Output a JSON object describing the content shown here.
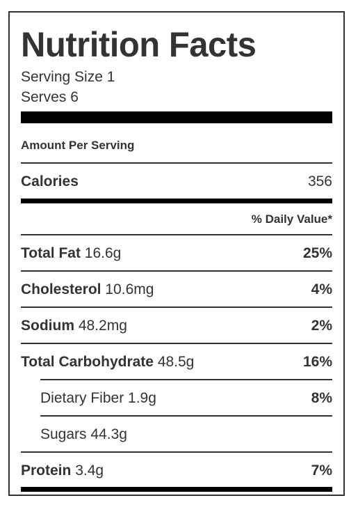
{
  "label": {
    "title": "Nutrition Facts",
    "serving_size": "Serving Size 1",
    "serves": "Serves 6",
    "amount_per_serving": "Amount Per Serving",
    "calories_label": "Calories",
    "calories_value": "356",
    "daily_value_header": "% Daily Value*",
    "rows": [
      {
        "name": "Total Fat",
        "amount": "16.6g",
        "percent": "25%"
      },
      {
        "name": "Cholesterol",
        "amount": "10.6mg",
        "percent": "4%"
      },
      {
        "name": "Sodium",
        "amount": "48.2mg",
        "percent": "2%"
      },
      {
        "name": "Total Carbohydrate",
        "amount": "48.5g",
        "percent": "16%"
      },
      {
        "name": "Dietary Fiber",
        "amount": "1.9g",
        "percent": "8%"
      },
      {
        "name": "Sugars",
        "amount": "44.3g",
        "percent": ""
      },
      {
        "name": "Protein",
        "amount": "3.4g",
        "percent": "7%"
      }
    ]
  }
}
